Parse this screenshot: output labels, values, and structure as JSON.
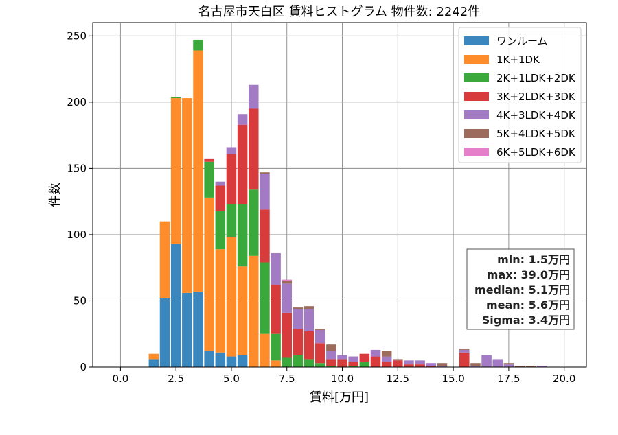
{
  "chart_data": {
    "type": "bar",
    "stacked": true,
    "title": "名古屋市天白区 賃料ヒストグラム 物件数: 2242件",
    "xlabel": "賃料[万円]",
    "ylabel": "件数",
    "xlim": [
      -1.25,
      21
    ],
    "ylim": [
      0,
      260
    ],
    "xticks": [
      0,
      2.5,
      5,
      7.5,
      10,
      12.5,
      15,
      17.5,
      20
    ],
    "xtick_labels": [
      "0.0",
      "2.5",
      "5.0",
      "7.5",
      "10.0",
      "12.5",
      "15.0",
      "17.5",
      "20.0"
    ],
    "yticks": [
      0,
      50,
      100,
      150,
      200,
      250
    ],
    "ytick_labels": [
      "0",
      "50",
      "100",
      "150",
      "200",
      "250"
    ],
    "grid": true,
    "legend_position": "top-right",
    "bin_width": 0.5,
    "x": [
      1.5,
      2.0,
      2.5,
      3.0,
      3.5,
      4.0,
      4.5,
      5.0,
      5.5,
      6.0,
      6.5,
      7.0,
      7.5,
      8.0,
      8.5,
      9.0,
      9.5,
      10.0,
      10.5,
      11.0,
      11.5,
      12.0,
      12.5,
      13.0,
      13.5,
      14.0,
      14.5,
      15.0,
      15.5,
      16.0,
      16.5,
      17.0,
      17.5,
      18.0,
      18.5,
      19.0,
      19.5
    ],
    "series": [
      {
        "name": "ワンルーム",
        "color": "#3a87bf",
        "values": [
          6,
          52,
          93,
          56,
          57,
          12,
          11,
          8,
          9,
          0,
          0,
          0,
          0,
          0,
          0,
          0,
          0,
          0,
          0,
          0,
          0,
          0,
          0,
          0,
          0,
          0,
          0,
          0,
          0,
          0,
          0,
          0,
          0,
          0,
          0,
          0,
          0
        ]
      },
      {
        "name": "1K+1DK",
        "color": "#ff8c2a",
        "values": [
          4,
          58,
          110,
          147,
          182,
          116,
          78,
          90,
          67,
          84,
          25,
          5,
          0,
          0,
          0,
          0,
          0,
          0,
          0,
          0,
          0,
          0,
          0,
          0,
          0,
          0,
          0,
          0,
          0,
          0,
          0,
          0,
          0,
          0,
          0,
          0,
          0
        ]
      },
      {
        "name": "2K+1LDK+2DK",
        "color": "#3aa83a",
        "values": [
          0,
          0,
          1,
          0,
          8,
          27,
          29,
          25,
          47,
          50,
          54,
          20,
          7,
          9,
          6,
          3,
          1,
          0,
          1,
          4,
          0,
          0,
          0,
          0,
          0,
          0,
          0,
          0,
          0,
          0,
          0,
          0,
          0,
          0,
          0,
          0,
          0
        ]
      },
      {
        "name": "3K+2LDK+3DK",
        "color": "#d83b3b",
        "values": [
          0,
          0,
          0,
          0,
          0,
          2,
          19,
          38,
          60,
          61,
          40,
          37,
          34,
          20,
          21,
          15,
          5,
          6,
          3,
          6,
          8,
          4,
          5,
          2,
          2,
          1,
          0,
          0,
          11,
          0,
          0,
          0,
          0,
          0,
          0,
          0,
          0
        ]
      },
      {
        "name": "4K+3LDK+4DK",
        "color": "#a37bc4",
        "values": [
          0,
          0,
          0,
          0,
          0,
          0,
          3,
          5,
          8,
          18,
          27,
          24,
          22,
          15,
          17,
          10,
          6,
          3,
          4,
          0,
          5,
          4,
          0,
          3,
          3,
          2,
          1,
          0,
          2,
          1,
          9,
          6,
          2,
          0,
          0,
          1,
          0
        ]
      },
      {
        "name": "5K+4LDK+5DK",
        "color": "#9c6b5c",
        "values": [
          0,
          0,
          0,
          0,
          0,
          0,
          0,
          0,
          0,
          0,
          1,
          0,
          2,
          1,
          2,
          1,
          5,
          0,
          0,
          0,
          0,
          4,
          1,
          0,
          0,
          0,
          2,
          0,
          1,
          2,
          0,
          0,
          1,
          1,
          1,
          0,
          0
        ]
      },
      {
        "name": "6K+5LDK+6DK",
        "color": "#e57fc9",
        "values": [
          0,
          0,
          0,
          0,
          0,
          0,
          0,
          0,
          0,
          0,
          0,
          0,
          1,
          0,
          0,
          0,
          0,
          0,
          0,
          0,
          0,
          0,
          0,
          0,
          0,
          0,
          0,
          0,
          0,
          0,
          0,
          0,
          0,
          0,
          0,
          0,
          0
        ]
      }
    ],
    "stats": {
      "min": "min: 1.5万円",
      "max": "max: 39.0万円",
      "median": "median: 5.1万円",
      "mean": "mean: 5.6万円",
      "sigma": "Sigma: 3.4万円"
    }
  }
}
